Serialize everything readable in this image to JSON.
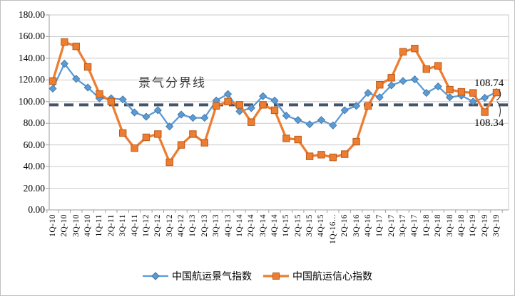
{
  "chart_data": {
    "type": "line",
    "title": "",
    "categories": [
      "1Q-10",
      "2Q-10",
      "3Q-10",
      "4Q-10",
      "1Q-11",
      "2Q-11",
      "3Q-11",
      "4Q-11",
      "1Q-12",
      "2Q-12",
      "3Q-12",
      "4Q-12",
      "1Q-13",
      "2Q-13",
      "3Q-13",
      "4Q-13",
      "1Q-14",
      "2Q-14",
      "3Q-14",
      "4Q-14",
      "1Q-15",
      "2Q-15",
      "3Q-15",
      "4Q-15",
      "1Q-16...",
      "2Q-16",
      "3Q-16",
      "4Q-16",
      "1Q-17",
      "2Q-17",
      "3Q-17",
      "4Q-17",
      "1Q-18",
      "2Q-18",
      "3Q-18",
      "4Q-18",
      "1Q-19",
      "2Q-19",
      "3Q-19"
    ],
    "series": [
      {
        "name": "中国航运景气指数",
        "color": "#5B9BD5",
        "marker": "diamond",
        "marker_edge_color": "#41719C",
        "values": [
          112,
          135,
          121,
          113,
          103,
          103,
          102,
          90,
          86,
          92,
          77,
          88,
          85,
          85,
          101,
          107,
          91,
          94,
          105,
          101,
          87,
          83,
          79,
          83,
          78,
          92,
          96,
          108,
          104,
          115,
          119,
          120.5,
          108,
          114,
          104,
          105.5,
          100,
          103.5,
          108.74
        ]
      },
      {
        "name": "中国航运信心指数",
        "color": "#ED7D31",
        "marker": "square",
        "marker_edge_color": "#BC5B17",
        "values": [
          119,
          155,
          151,
          132,
          107,
          100,
          71,
          57,
          67,
          70,
          44,
          60,
          70,
          62,
          96,
          100,
          97,
          81,
          97,
          92,
          66,
          65,
          49.5,
          51,
          48.5,
          51.5,
          63,
          96,
          115.5,
          122,
          146,
          149,
          130,
          133,
          111,
          109,
          108,
          90.3,
          108.34
        ]
      }
    ],
    "ylim": [
      0,
      180
    ],
    "ytick_step": 20,
    "y_tick_labels": [
      "0.00",
      "20.00",
      "40.00",
      "60.00",
      "80.00",
      "100.00",
      "120.00",
      "140.00",
      "160.00",
      "180.00"
    ],
    "grid": "horizontal",
    "legend_position": "bottom",
    "boundary_line": {
      "label": "景气分界线",
      "value": 97,
      "style": "dashed",
      "color": "#44546A"
    },
    "annotations": [
      {
        "text": "108.74",
        "series": "中国航运景气指数",
        "category": "3Q-19"
      },
      {
        "text": "108.34",
        "series": "中国航运信心指数",
        "category": "3Q-19"
      }
    ]
  }
}
